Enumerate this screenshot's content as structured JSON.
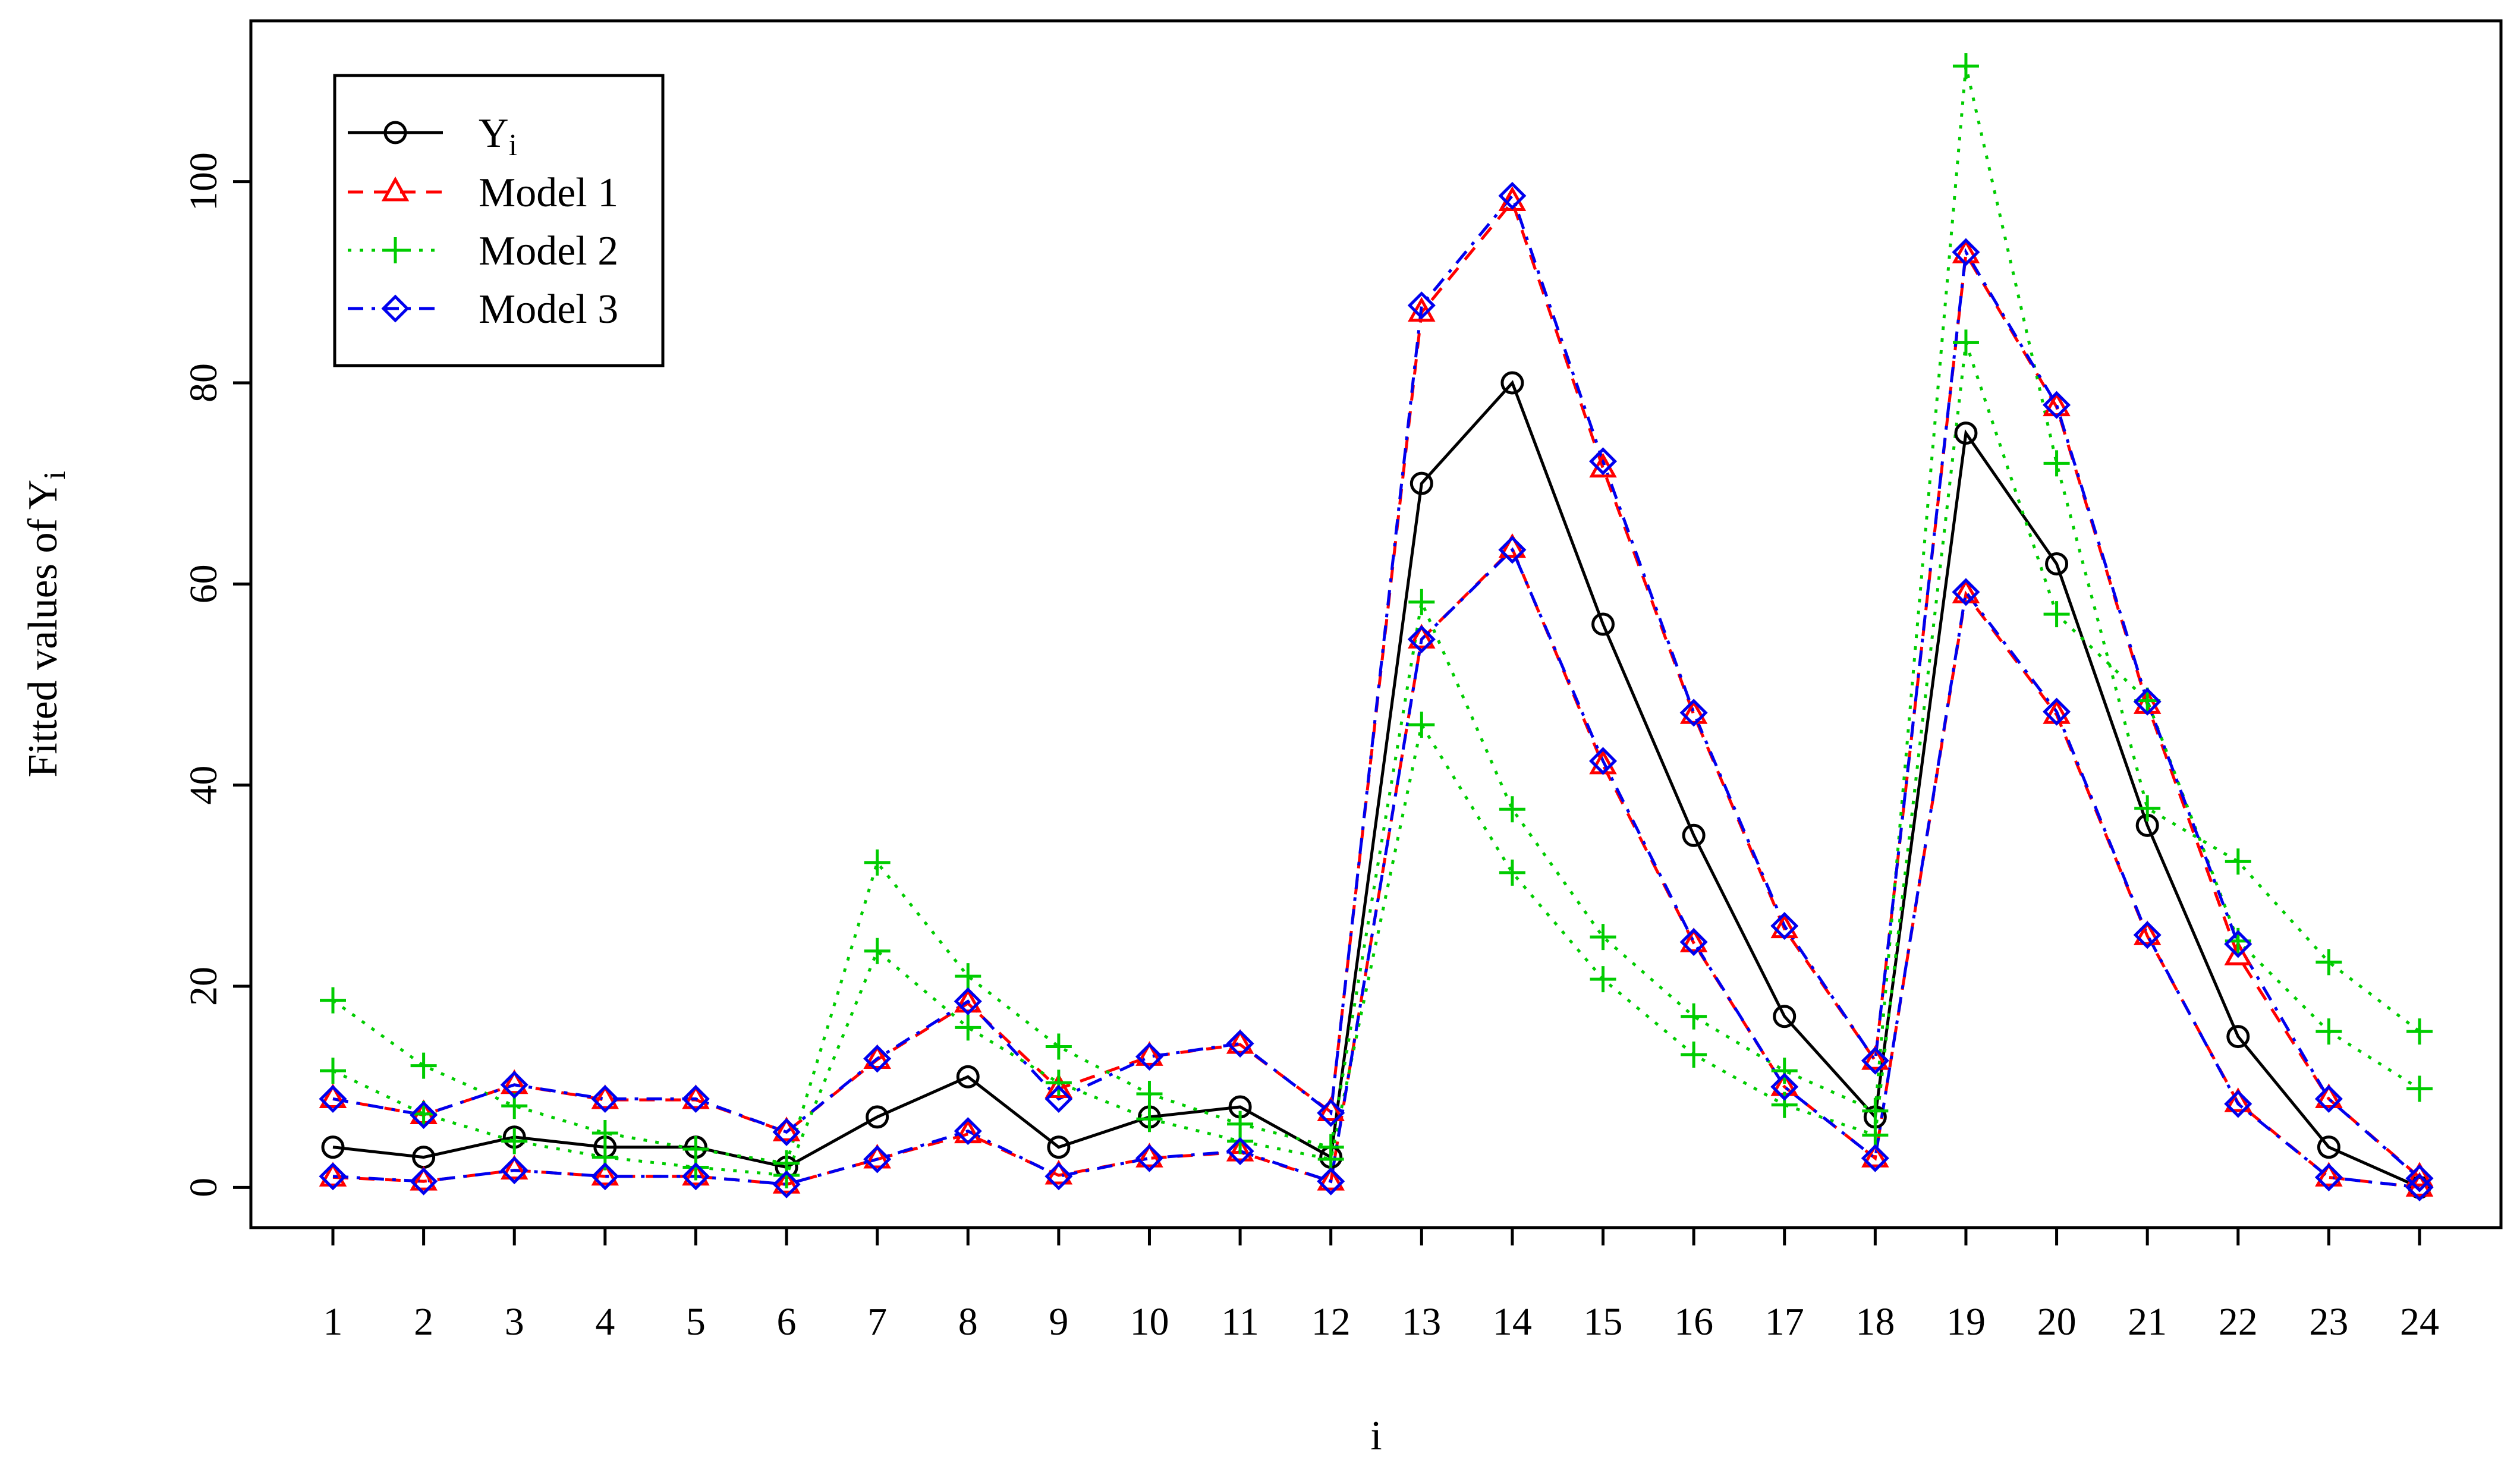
{
  "chart_data": {
    "type": "line",
    "xlabel": "i",
    "ylabel": "Fitted values of  Y",
    "ylabel_subscript": "i",
    "ylim": [
      -4,
      116
    ],
    "yticks": [
      0,
      20,
      40,
      60,
      80,
      100
    ],
    "x": [
      1,
      2,
      3,
      4,
      5,
      6,
      7,
      8,
      9,
      10,
      11,
      12,
      13,
      14,
      15,
      16,
      17,
      18,
      19,
      20,
      21,
      22,
      23,
      24
    ],
    "grid": false,
    "legend_position": "top-left",
    "series": [
      {
        "name": "Y",
        "name_subscript": "i",
        "color": "#000000",
        "line_style": "solid",
        "marker": "circle",
        "values": [
          4,
          3,
          5,
          4,
          4,
          2,
          7,
          11,
          4,
          7,
          8,
          3,
          70,
          80,
          56,
          35,
          17,
          7,
          75,
          62,
          36,
          15,
          4,
          0
        ]
      },
      {
        "name": "Model 1",
        "color": "#ff0000",
        "line_style": "dashed",
        "marker": "triangle",
        "bands": [
          [
            8.8,
            7.2,
            10.2,
            8.7,
            8.7,
            5.5,
            12.7,
            18.3,
            9.8,
            13.0,
            14.2,
            7.5,
            87.0,
            98.0,
            71.5,
            47.0,
            25.7,
            12.6,
            92.8,
            77.6,
            48.0,
            23.0,
            8.8,
            1.0
          ],
          [
            1.0,
            0.6,
            1.7,
            1.1,
            1.1,
            0.3,
            2.8,
            5.3,
            1.2,
            2.9,
            3.5,
            0.6,
            54.5,
            63.5,
            42.0,
            24.3,
            10.0,
            2.9,
            59.0,
            47.0,
            25.0,
            8.4,
            1.0,
            0.0
          ]
        ]
      },
      {
        "name": "Model 2",
        "color": "#00cc00",
        "line_style": "dotted",
        "marker": "plus",
        "bands": [
          [
            18.6,
            12.1,
            8.1,
            5.4,
            3.8,
            2.4,
            32.3,
            21.0,
            14.0,
            9.3,
            6.3,
            4.0,
            58.2,
            37.6,
            24.9,
            17.0,
            11.6,
            7.6,
            111.5,
            72.0,
            37.7,
            32.4,
            22.4,
            15.5
          ],
          [
            11.6,
            7.3,
            4.6,
            3.0,
            2.0,
            1.2,
            23.5,
            15.9,
            10.4,
            6.8,
            4.6,
            2.8,
            46.0,
            31.3,
            20.7,
            13.2,
            8.2,
            5.2,
            84.0,
            57.0,
            48.4,
            24.5,
            15.5,
            9.8
          ]
        ]
      },
      {
        "name": "Model 3",
        "color": "#0000ee",
        "line_style": "dashdot",
        "marker": "diamond",
        "bands": [
          [
            8.8,
            7.2,
            10.2,
            8.8,
            8.8,
            5.5,
            12.8,
            18.5,
            8.8,
            13.0,
            14.3,
            7.4,
            87.7,
            98.6,
            72.2,
            47.2,
            26.0,
            12.6,
            93.0,
            77.8,
            48.3,
            24.2,
            8.8,
            0.9
          ],
          [
            1.1,
            0.6,
            1.7,
            1.1,
            1.1,
            0.3,
            2.8,
            5.6,
            1.1,
            2.9,
            3.6,
            0.6,
            54.5,
            63.4,
            42.4,
            24.4,
            10.0,
            2.9,
            59.2,
            47.3,
            25.1,
            8.3,
            1.0,
            0.0
          ]
        ]
      }
    ]
  }
}
